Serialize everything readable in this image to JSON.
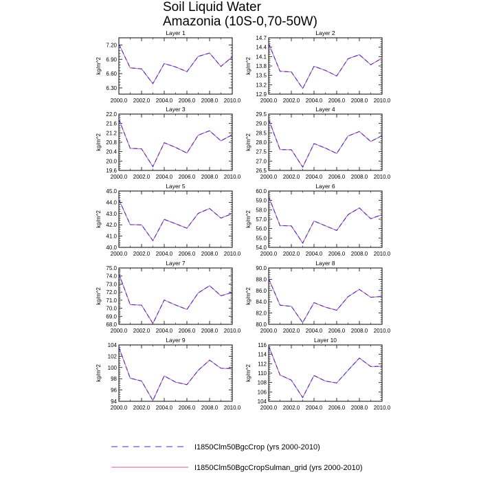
{
  "title": "Soil Liquid Water",
  "subtitle": "Amazonia (10S-0,70-50W)",
  "legend": {
    "placement": "bottom",
    "entries": [
      {
        "label": "I1850Clm50BgcCrop (yrs 2000-2010)",
        "color": "#3333cc",
        "style": "dashed"
      },
      {
        "label": "I1850Clm50BgcCropSulman_grid (yrs 2000-2010)",
        "color": "#e0528f",
        "style": "solid"
      }
    ]
  },
  "chart_data": [
    {
      "type": "line",
      "title": "Layer 1",
      "ylabel": "kg/m^2",
      "x": [
        2000,
        2001,
        2002,
        2003,
        2004,
        2005,
        2006,
        2007,
        2008,
        2009,
        2010
      ],
      "xlim": [
        2000,
        2010
      ],
      "ylim": [
        6.17,
        7.35
      ],
      "yticks": [
        "6.30",
        "6.60",
        "6.90",
        "7.20"
      ],
      "xticks": [
        "2000.0",
        "2002.0",
        "2004.0",
        "2006.0",
        "2008.0",
        "2010.0"
      ],
      "series": [
        {
          "values": [
            7.22,
            6.72,
            6.7,
            6.39,
            6.81,
            6.74,
            6.64,
            6.96,
            7.03,
            6.75,
            6.95
          ]
        },
        {
          "values": [
            7.22,
            6.72,
            6.7,
            6.39,
            6.81,
            6.74,
            6.64,
            6.96,
            7.03,
            6.75,
            6.95
          ]
        }
      ]
    },
    {
      "type": "line",
      "title": "Layer 2",
      "ylabel": "kg/m^2",
      "x": [
        2000,
        2001,
        2002,
        2003,
        2004,
        2005,
        2006,
        2007,
        2008,
        2009,
        2010
      ],
      "xlim": [
        2000,
        2010
      ],
      "ylim": [
        12.9,
        14.7
      ],
      "yticks": [
        "12.9",
        "13.2",
        "13.5",
        "13.8",
        "14.1",
        "14.4",
        "14.7"
      ],
      "xticks": [
        "2000.0",
        "2002.0",
        "2004.0",
        "2006.0",
        "2008.0",
        "2010.0"
      ],
      "series": [
        {
          "values": [
            14.52,
            13.63,
            13.61,
            13.08,
            13.79,
            13.66,
            13.48,
            14.03,
            14.16,
            13.84,
            14.05
          ]
        },
        {
          "values": [
            14.52,
            13.63,
            13.61,
            13.08,
            13.79,
            13.66,
            13.48,
            14.03,
            14.16,
            13.84,
            14.05
          ]
        }
      ]
    },
    {
      "type": "line",
      "title": "Layer 3",
      "ylabel": "kg/m^2",
      "x": [
        2000,
        2001,
        2002,
        2003,
        2004,
        2005,
        2006,
        2007,
        2008,
        2009,
        2010
      ],
      "xlim": [
        2000,
        2010
      ],
      "ylim": [
        19.6,
        22.0
      ],
      "yticks": [
        "19.6",
        "20.0",
        "20.4",
        "20.8",
        "21.2",
        "21.6",
        "22.0"
      ],
      "xticks": [
        "2000.0",
        "2002.0",
        "2004.0",
        "2006.0",
        "2008.0",
        "2010.0"
      ],
      "series": [
        {
          "values": [
            21.78,
            20.54,
            20.52,
            19.76,
            20.78,
            20.58,
            20.34,
            21.1,
            21.29,
            20.86,
            21.12
          ]
        },
        {
          "values": [
            21.78,
            20.54,
            20.52,
            19.76,
            20.78,
            20.58,
            20.34,
            21.1,
            21.29,
            20.86,
            21.12
          ]
        }
      ]
    },
    {
      "type": "line",
      "title": "Layer 4",
      "ylabel": "kg/m^2",
      "x": [
        2000,
        2001,
        2002,
        2003,
        2004,
        2005,
        2006,
        2007,
        2008,
        2009,
        2010
      ],
      "xlim": [
        2000,
        2010
      ],
      "ylim": [
        26.5,
        29.5
      ],
      "yticks": [
        "26.5",
        "27.0",
        "27.5",
        "28.0",
        "28.5",
        "29.0",
        "29.5"
      ],
      "xticks": [
        "2000.0",
        "2002.0",
        "2004.0",
        "2006.0",
        "2008.0",
        "2010.0"
      ],
      "series": [
        {
          "values": [
            29.22,
            27.61,
            27.6,
            26.68,
            27.93,
            27.69,
            27.4,
            28.33,
            28.57,
            28.04,
            28.35
          ]
        },
        {
          "values": [
            29.22,
            27.61,
            27.6,
            26.68,
            27.93,
            27.69,
            27.4,
            28.33,
            28.57,
            28.04,
            28.35
          ]
        }
      ]
    },
    {
      "type": "line",
      "title": "Layer 5",
      "ylabel": "kg/m^2",
      "x": [
        2000,
        2001,
        2002,
        2003,
        2004,
        2005,
        2006,
        2007,
        2008,
        2009,
        2010
      ],
      "xlim": [
        2000,
        2010
      ],
      "ylim": [
        40.0,
        45.0
      ],
      "yticks": [
        "40.0",
        "41.0",
        "42.0",
        "43.0",
        "44.0",
        "45.0"
      ],
      "xticks": [
        "2000.0",
        "2002.0",
        "2004.0",
        "2006.0",
        "2008.0",
        "2010.0"
      ],
      "series": [
        {
          "values": [
            44.25,
            42.02,
            42.0,
            40.6,
            42.48,
            42.1,
            41.7,
            43.02,
            43.45,
            42.6,
            43.0
          ]
        },
        {
          "values": [
            44.25,
            42.02,
            42.0,
            40.6,
            42.48,
            42.1,
            41.7,
            43.02,
            43.45,
            42.6,
            43.0
          ]
        }
      ]
    },
    {
      "type": "line",
      "title": "Layer 6",
      "ylabel": "kg/m^2",
      "x": [
        2000,
        2001,
        2002,
        2003,
        2004,
        2005,
        2006,
        2007,
        2008,
        2009,
        2010
      ],
      "xlim": [
        2000,
        2010
      ],
      "ylim": [
        54.0,
        60.0
      ],
      "yticks": [
        "54.0",
        "55.0",
        "56.0",
        "57.0",
        "58.0",
        "59.0",
        "60.0"
      ],
      "xticks": [
        "2000.0",
        "2002.0",
        "2004.0",
        "2006.0",
        "2008.0",
        "2010.0"
      ],
      "series": [
        {
          "values": [
            59.4,
            56.32,
            56.28,
            54.45,
            56.8,
            56.3,
            55.8,
            57.48,
            58.2,
            57.05,
            57.48
          ]
        },
        {
          "values": [
            59.4,
            56.32,
            56.28,
            54.45,
            56.8,
            56.3,
            55.8,
            57.48,
            58.2,
            57.05,
            57.48
          ]
        }
      ]
    },
    {
      "type": "line",
      "title": "Layer 7",
      "ylabel": "kg/m^2",
      "x": [
        2000,
        2001,
        2002,
        2003,
        2004,
        2005,
        2006,
        2007,
        2008,
        2009,
        2010
      ],
      "xlim": [
        2000,
        2010
      ],
      "ylim": [
        68.0,
        75.0
      ],
      "yticks": [
        "68.0",
        "69.0",
        "70.0",
        "71.0",
        "72.0",
        "73.0",
        "74.0",
        "75.0"
      ],
      "xticks": [
        "2000.0",
        "2002.0",
        "2004.0",
        "2006.0",
        "2008.0",
        "2010.0"
      ],
      "series": [
        {
          "values": [
            74.3,
            70.45,
            70.38,
            68.1,
            71.02,
            70.4,
            69.85,
            71.9,
            72.8,
            71.55,
            71.95
          ]
        },
        {
          "values": [
            74.3,
            70.45,
            70.38,
            68.1,
            71.02,
            70.4,
            69.85,
            71.9,
            72.8,
            71.55,
            71.95
          ]
        }
      ]
    },
    {
      "type": "line",
      "title": "Layer 8",
      "ylabel": "kg/m^2",
      "x": [
        2000,
        2001,
        2002,
        2003,
        2004,
        2005,
        2006,
        2007,
        2008,
        2009,
        2010
      ],
      "xlim": [
        2000,
        2010
      ],
      "ylim": [
        80.0,
        90.0
      ],
      "yticks": [
        "80.0",
        "82.0",
        "84.0",
        "86.0",
        "88.0",
        "90.0"
      ],
      "xticks": [
        "2000.0",
        "2002.0",
        "2004.0",
        "2006.0",
        "2008.0",
        "2010.0"
      ],
      "series": [
        {
          "values": [
            88.1,
            83.4,
            83.2,
            80.3,
            83.85,
            83.05,
            82.5,
            84.9,
            86.2,
            84.8,
            84.95
          ]
        },
        {
          "values": [
            88.1,
            83.4,
            83.2,
            80.3,
            83.85,
            83.05,
            82.5,
            84.9,
            86.2,
            84.8,
            84.95
          ]
        }
      ]
    },
    {
      "type": "line",
      "title": "Layer 9",
      "ylabel": "kg/m^2",
      "x": [
        2000,
        2001,
        2002,
        2003,
        2004,
        2005,
        2006,
        2007,
        2008,
        2009,
        2010
      ],
      "xlim": [
        2000,
        2010
      ],
      "ylim": [
        94,
        104
      ],
      "yticks": [
        "94",
        "96",
        "98",
        "100",
        "102",
        "104"
      ],
      "xticks": [
        "2000.0",
        "2002.0",
        "2004.0",
        "2006.0",
        "2008.0",
        "2010.0"
      ],
      "series": [
        {
          "values": [
            103.6,
            98.1,
            97.6,
            94.15,
            98.5,
            97.4,
            96.95,
            99.5,
            101.3,
            99.85,
            99.8
          ]
        },
        {
          "values": [
            103.6,
            98.1,
            97.6,
            94.15,
            98.5,
            97.4,
            96.95,
            99.5,
            101.3,
            99.85,
            99.8
          ]
        }
      ]
    },
    {
      "type": "line",
      "title": "Layer 10",
      "ylabel": "kg/m^2",
      "x": [
        2000,
        2001,
        2002,
        2003,
        2004,
        2005,
        2006,
        2007,
        2008,
        2009,
        2010
      ],
      "xlim": [
        2000,
        2010
      ],
      "ylim": [
        104,
        116
      ],
      "yticks": [
        "104",
        "106",
        "108",
        "110",
        "112",
        "114",
        "116"
      ],
      "xticks": [
        "2000.0",
        "2002.0",
        "2004.0",
        "2006.0",
        "2008.0",
        "2010.0"
      ],
      "series": [
        {
          "values": [
            115.8,
            109.6,
            108.5,
            104.8,
            109.5,
            108.3,
            107.9,
            110.6,
            113.2,
            111.4,
            111.45
          ]
        },
        {
          "values": [
            115.8,
            109.6,
            108.5,
            104.8,
            109.5,
            108.3,
            107.9,
            110.6,
            113.2,
            111.4,
            111.45
          ]
        }
      ]
    }
  ]
}
